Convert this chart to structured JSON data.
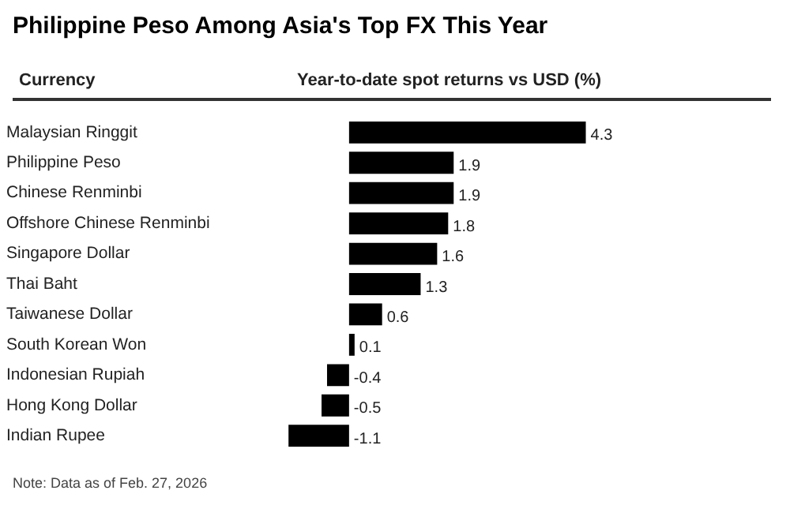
{
  "chart_data": {
    "type": "bar",
    "orientation": "horizontal",
    "title": "Philippine Peso Among Asia's Top FX This Year",
    "ylabel": "Currency",
    "xlabel": "Year-to-date spot returns vs USD (%)",
    "categories": [
      "Malaysian Ringgit",
      "Philippine Peso",
      "Chinese Renminbi",
      "Offshore Chinese Renminbi",
      "Singapore Dollar",
      "Thai Baht",
      "Taiwanese Dollar",
      "South Korean Won",
      "Indonesian Rupiah",
      "Hong Kong Dollar",
      "Indian Rupee"
    ],
    "values": [
      4.3,
      1.9,
      1.9,
      1.8,
      1.6,
      1.3,
      0.6,
      0.1,
      -0.4,
      -0.5,
      -1.1
    ],
    "color": "#000000",
    "data_labels": true,
    "grid": false,
    "legend": false,
    "annotations": [
      "Note: Data as of Feb. 27, 2026"
    ]
  }
}
